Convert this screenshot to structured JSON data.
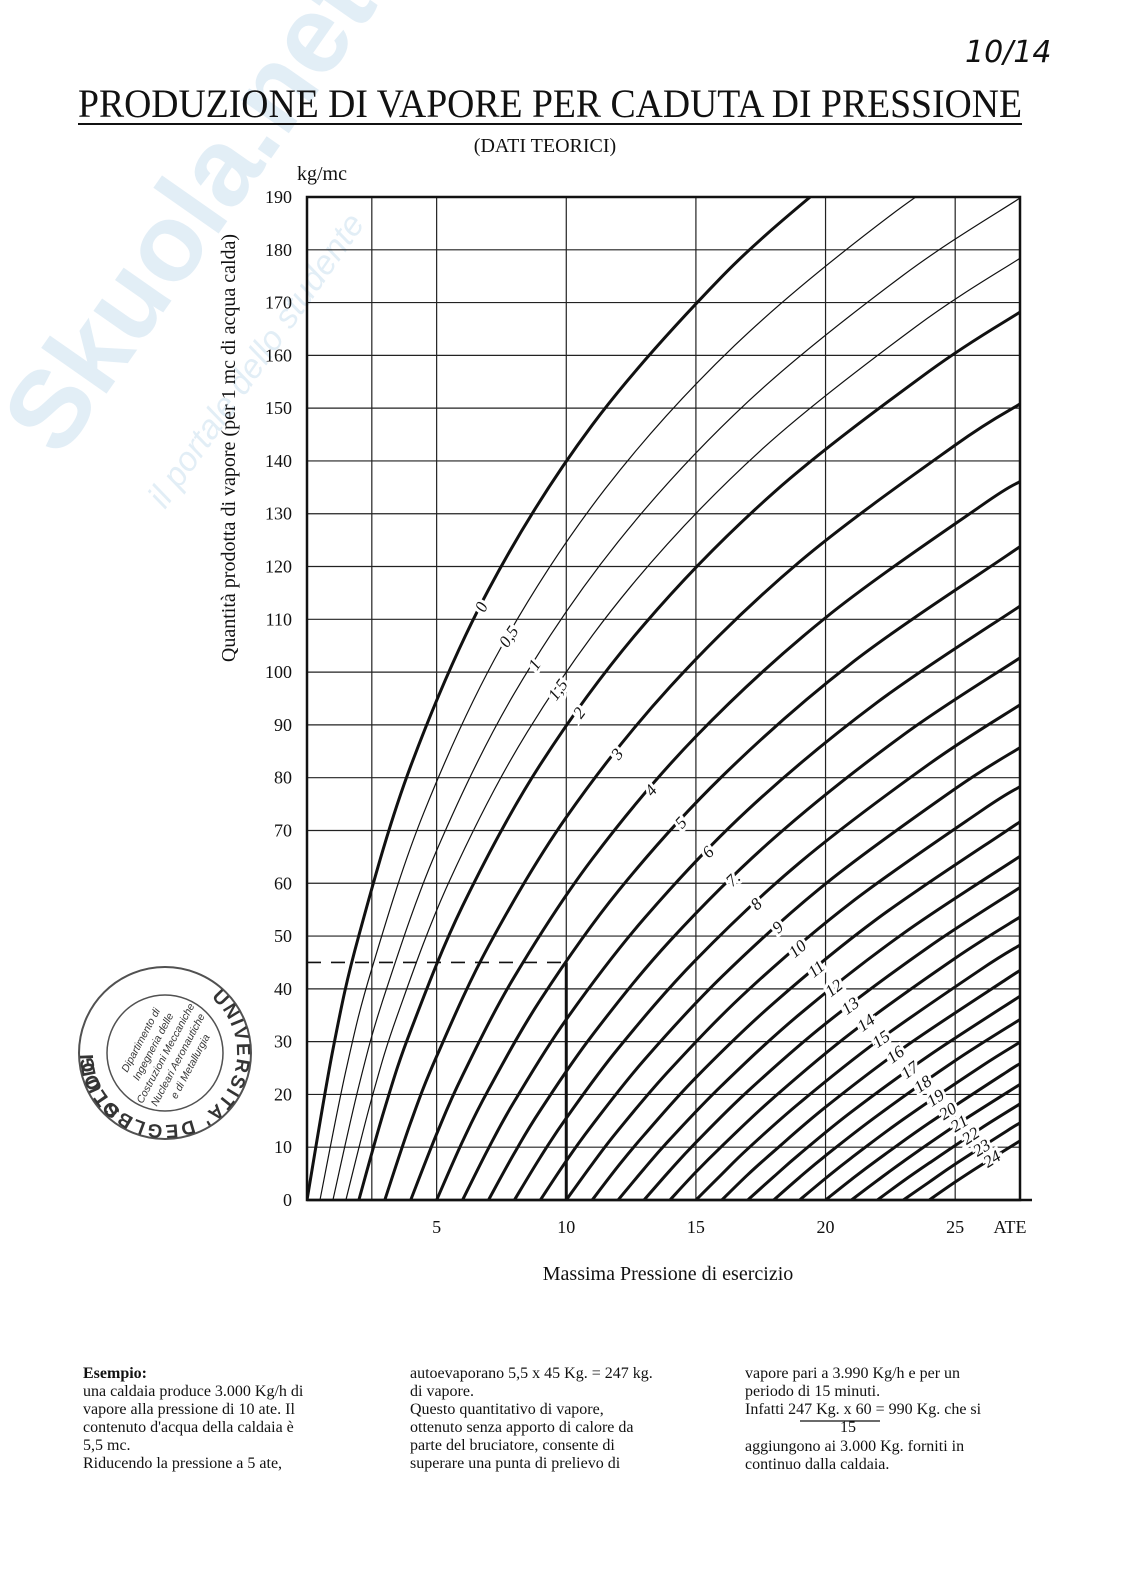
{
  "chart_data": {
    "type": "line",
    "title": "PRODUZIONE DI VAPORE PER CADUTA DI PRESSIONE",
    "subtitle": "(DATI TEORICI)",
    "y_unit": "kg/mc",
    "x_unit": "ATE",
    "y_label": "Quantità prodotta di vapore (per 1 mc di acqua calda)",
    "x_label": "Massima Pressione di esercizio",
    "xlim": [
      0,
      27.5
    ],
    "ylim": [
      0,
      190
    ],
    "xticks": [
      5,
      10,
      15,
      20,
      25
    ],
    "x_minor_gridlines": [
      2.5
    ],
    "yticks": [
      0,
      10,
      20,
      30,
      40,
      50,
      60,
      70,
      80,
      90,
      100,
      110,
      120,
      130,
      140,
      150,
      160,
      170,
      180,
      190
    ],
    "grid": true,
    "example": {
      "x": 10,
      "y": 45
    },
    "series": [
      {
        "name": "0",
        "color": "#111",
        "line_width": 3,
        "x": [
          0,
          1,
          2,
          4,
          7,
          11,
          16,
          20
        ],
        "values": [
          0,
          28.5,
          50.1,
          82.2,
          115.6,
          146.8,
          174.9,
          192.5
        ]
      },
      {
        "name": "0,5",
        "color": "#111",
        "line_width": 1.2,
        "x": [
          0.5,
          1.5,
          2.5,
          4.5,
          7.5,
          11.5,
          16.5,
          22.5,
          27.5
        ],
        "values": [
          0,
          24.5,
          43.8,
          73.3,
          104.8,
          134.7,
          161.9,
          186.5,
          202.9
        ]
      },
      {
        "name": "1",
        "color": "#111",
        "line_width": 1.2,
        "x": [
          1,
          2,
          3,
          5,
          8,
          12,
          17,
          23,
          27.5
        ],
        "values": [
          0,
          21.6,
          39,
          66.2,
          96,
          124.7,
          151.2,
          175.2,
          189.8
        ]
      },
      {
        "name": "1,5",
        "color": "#111",
        "line_width": 1.2,
        "x": [
          1.5,
          2.5,
          3.5,
          5.5,
          8.5,
          12.5,
          17.5,
          23.5,
          27.5
        ],
        "values": [
          0,
          19.3,
          35.2,
          60.5,
          88.7,
          116.3,
          142,
          165.5,
          178.4
        ]
      },
      {
        "name": "2",
        "color": "#111",
        "line_width": 3,
        "x": [
          2,
          3,
          4,
          6,
          9,
          13,
          18,
          24,
          27.5
        ],
        "values": [
          0,
          17.4,
          32.1,
          55.7,
          82.5,
          109,
          134,
          157,
          168.2
        ]
      },
      {
        "name": "3",
        "color": "#111",
        "line_width": 3,
        "x": [
          3,
          4,
          5,
          7,
          10,
          14,
          19,
          25,
          27.5
        ],
        "values": [
          0,
          14.7,
          27.2,
          48.1,
          72.5,
          97.2,
          120.9,
          143,
          150.8
        ]
      },
      {
        "name": "4",
        "color": "#111",
        "line_width": 3,
        "x": [
          4,
          5,
          6,
          8,
          11,
          15,
          20,
          26,
          27.5
        ],
        "values": [
          0,
          12.5,
          23.6,
          42.3,
          64.6,
          87.8,
          110.3,
          131.5,
          136.1
        ]
      },
      {
        "name": "5",
        "color": "#111",
        "line_width": 3,
        "x": [
          5,
          6,
          7,
          9,
          12,
          16,
          21,
          27,
          27.5
        ],
        "values": [
          0,
          11.1,
          20.9,
          37.9,
          58.5,
          80.2,
          101.7,
          122.1,
          123.6
        ]
      },
      {
        "name": "6",
        "color": "#111",
        "line_width": 3,
        "x": [
          6,
          7,
          8,
          10,
          13,
          17,
          22,
          27.5
        ],
        "values": [
          0,
          9.8,
          18.7,
          34.2,
          53.3,
          73.9,
          94.3,
          112.5
        ]
      },
      {
        "name": "7.",
        "color": "#111",
        "line_width": 3,
        "x": [
          7,
          8,
          9,
          11,
          14,
          18,
          23,
          27.5
        ],
        "values": [
          0,
          8.9,
          17,
          31.2,
          49.1,
          68.5,
          88.1,
          102.7
        ]
      },
      {
        "name": "8",
        "color": "#111",
        "line_width": 3,
        "x": [
          8,
          9,
          10,
          12,
          15,
          19,
          24,
          27.5
        ],
        "values": [
          0,
          8.1,
          15.5,
          28.7,
          45.5,
          63.9,
          82.6,
          93.8
        ]
      },
      {
        "name": "9",
        "color": "#111",
        "line_width": 3,
        "x": [
          9,
          10,
          11,
          13,
          16,
          20,
          25,
          27.5
        ],
        "values": [
          0,
          7.4,
          14.2,
          26.5,
          42.3,
          59.9,
          77.9,
          85.7
        ]
      },
      {
        "name": "10",
        "color": "#111",
        "line_width": 3,
        "x": [
          10,
          11,
          12,
          14,
          17,
          21,
          26,
          27.5
        ],
        "values": [
          0,
          6.8,
          13.2,
          24.7,
          39.7,
          56.4,
          73.7,
          78.3
        ]
      },
      {
        "name": "11",
        "color": "#111",
        "line_width": 3,
        "x": [
          11,
          12,
          13,
          15,
          18,
          22,
          27,
          27.5
        ],
        "values": [
          0,
          6.4,
          12.3,
          23.2,
          37.3,
          53.3,
          70,
          71.5
        ]
      },
      {
        "name": "12",
        "color": "#111",
        "line_width": 3,
        "x": [
          12,
          13,
          14,
          16,
          19,
          23,
          27.5
        ],
        "values": [
          0,
          5.9,
          11.5,
          21.7,
          35.2,
          50.5,
          65.1
        ]
      },
      {
        "name": "13",
        "color": "#111",
        "line_width": 3,
        "x": [
          13,
          14,
          15,
          17,
          20,
          24,
          27.5
        ],
        "values": [
          0,
          5.6,
          10.9,
          20.6,
          33.4,
          48,
          59.2
        ]
      },
      {
        "name": "14",
        "color": "#111",
        "line_width": 3,
        "x": [
          14,
          15,
          16,
          18,
          21,
          25,
          27.5
        ],
        "values": [
          0,
          5.3,
          10.2,
          19.4,
          31.7,
          45.8,
          53.6
        ]
      },
      {
        "name": "15",
        "color": "#111",
        "line_width": 3,
        "x": [
          15,
          16,
          17,
          19,
          22,
          26,
          27.5
        ],
        "values": [
          0,
          4.9,
          9.7,
          18.4,
          30.1,
          43.7,
          48.3
        ]
      },
      {
        "name": "16",
        "color": "#111",
        "line_width": 3,
        "x": [
          16,
          17,
          18,
          20,
          23,
          27,
          27.5
        ],
        "values": [
          0,
          4.8,
          9.2,
          17.6,
          28.8,
          41.9,
          43.4
        ]
      },
      {
        "name": "17",
        "color": "#111",
        "line_width": 3,
        "x": [
          17,
          18,
          19,
          21,
          24,
          27.5
        ],
        "values": [
          0,
          4.4,
          8.7,
          16.7,
          27.4,
          38.6
        ]
      },
      {
        "name": "18",
        "color": "#111",
        "line_width": 3,
        "x": [
          18,
          19,
          20,
          22,
          25,
          27.5
        ],
        "values": [
          0,
          4.3,
          8.4,
          16,
          26.4,
          34.2
        ]
      },
      {
        "name": "19",
        "color": "#111",
        "line_width": 3,
        "x": [
          19,
          20,
          21,
          23,
          26,
          27.5
        ],
        "values": [
          0,
          4.1,
          8,
          15.3,
          25.3,
          29.9
        ]
      },
      {
        "name": "20",
        "color": "#111",
        "line_width": 3,
        "x": [
          20,
          21,
          22,
          24,
          27,
          27.5
        ],
        "values": [
          0,
          3.9,
          7.6,
          14.6,
          24.3,
          25.8
        ]
      },
      {
        "name": "21",
        "color": "#111",
        "line_width": 3,
        "x": [
          21,
          22,
          23,
          25,
          27.5
        ],
        "values": [
          0,
          3.7,
          7.3,
          14.1,
          21.9
        ]
      },
      {
        "name": "22",
        "color": "#111",
        "line_width": 3,
        "x": [
          22,
          23,
          24,
          26,
          27.5
        ],
        "values": [
          0,
          3.6,
          7,
          13.6,
          18.2
        ]
      },
      {
        "name": "23",
        "color": "#111",
        "line_width": 3,
        "x": [
          23,
          24,
          25,
          27,
          27.5
        ],
        "values": [
          0,
          3.4,
          6.8,
          13.1,
          14.6
        ]
      },
      {
        "name": "24",
        "color": "#111",
        "line_width": 3,
        "x": [
          24,
          25,
          26,
          27.5
        ],
        "values": [
          0,
          3.4,
          6.6,
          11.2
        ]
      }
    ]
  },
  "page": {
    "page_number": "10/14",
    "watermark": {
      "brand": "Skuola.net",
      "tagline": "il portale dello studente"
    },
    "stamp": {
      "outer_top": "UNIVERSITA' DEGLI STUDI",
      "outer_left": "BOLOGNA",
      "inner": [
        "Dipartimento di",
        "Ingegneria delle",
        "Costruzioni Meccaniche",
        "Nucleari Aeronautiche",
        "e di Metallurgia"
      ]
    },
    "example_heading": "Esempio:",
    "columns": [
      [
        "una caldaia produce 3.000 Kg/h di",
        "vapore alla pressione di 10 ate. Il",
        "contenuto d'acqua della caldaia è",
        "5,5 mc.",
        "Riducendo la pressione a 5 ate,"
      ],
      [
        "autoevaporano 5,5 x 45 Kg. = 247 kg.",
        "di vapore.",
        "Questo quantitativo di vapore,",
        "ottenuto senza apporto di calore da",
        "parte del bruciatore, consente di",
        "superare una punta di prelievo di"
      ],
      [
        "vapore pari a 3.990 Kg/h e per un",
        "periodo di 15 minuti.",
        "Infatti 247 Kg. x 60 = 990 Kg. che si",
        "15",
        "aggiungono ai 3.000 Kg. forniti in",
        "continuo dalla caldaia."
      ]
    ]
  }
}
